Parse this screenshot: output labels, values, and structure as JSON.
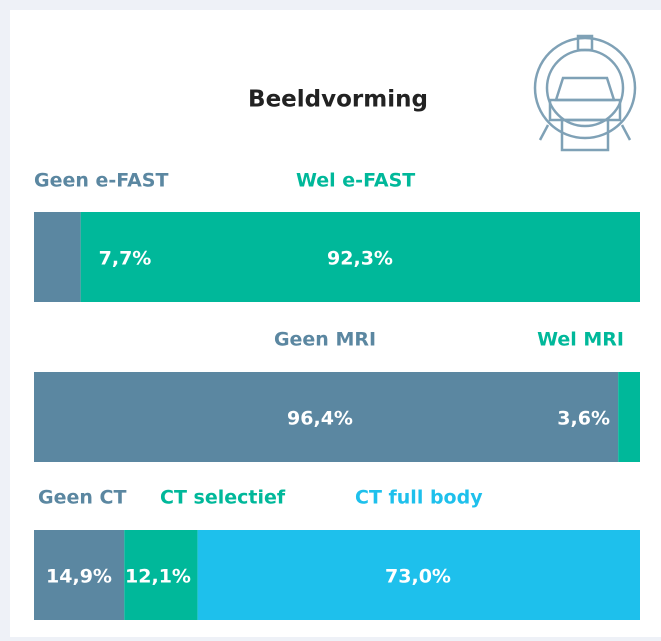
{
  "title": "Beeldvorming",
  "chart_data": [
    {
      "type": "bar",
      "stacked": true,
      "orientation": "horizontal",
      "xlim": [
        0,
        100
      ],
      "series": [
        {
          "name": "Geen e-FAST",
          "color": "#5b87a1",
          "values": [
            7.7
          ],
          "value_labels": [
            "7,7%"
          ]
        },
        {
          "name": "Wel e-FAST",
          "color": "#00b89a",
          "values": [
            92.3
          ],
          "value_labels": [
            "92,3%"
          ]
        }
      ]
    },
    {
      "type": "bar",
      "stacked": true,
      "orientation": "horizontal",
      "xlim": [
        0,
        100
      ],
      "series": [
        {
          "name": "Geen MRI",
          "color": "#5b87a1",
          "values": [
            96.4
          ],
          "value_labels": [
            "96,4%"
          ]
        },
        {
          "name": "Wel MRI",
          "color": "#00b89a",
          "values": [
            3.6
          ],
          "value_labels": [
            "3,6%"
          ]
        }
      ]
    },
    {
      "type": "bar",
      "stacked": true,
      "orientation": "horizontal",
      "xlim": [
        0,
        100
      ],
      "series": [
        {
          "name": "Geen CT",
          "color": "#5b87a1",
          "values": [
            14.9
          ],
          "value_labels": [
            "14,9%"
          ]
        },
        {
          "name": "CT selectief",
          "color": "#00b89a",
          "values": [
            12.1
          ],
          "value_labels": [
            "12,1%"
          ]
        },
        {
          "name": "CT full body",
          "color": "#1ec0ec",
          "values": [
            73.0
          ],
          "value_labels": [
            "73,0%"
          ]
        }
      ]
    }
  ]
}
